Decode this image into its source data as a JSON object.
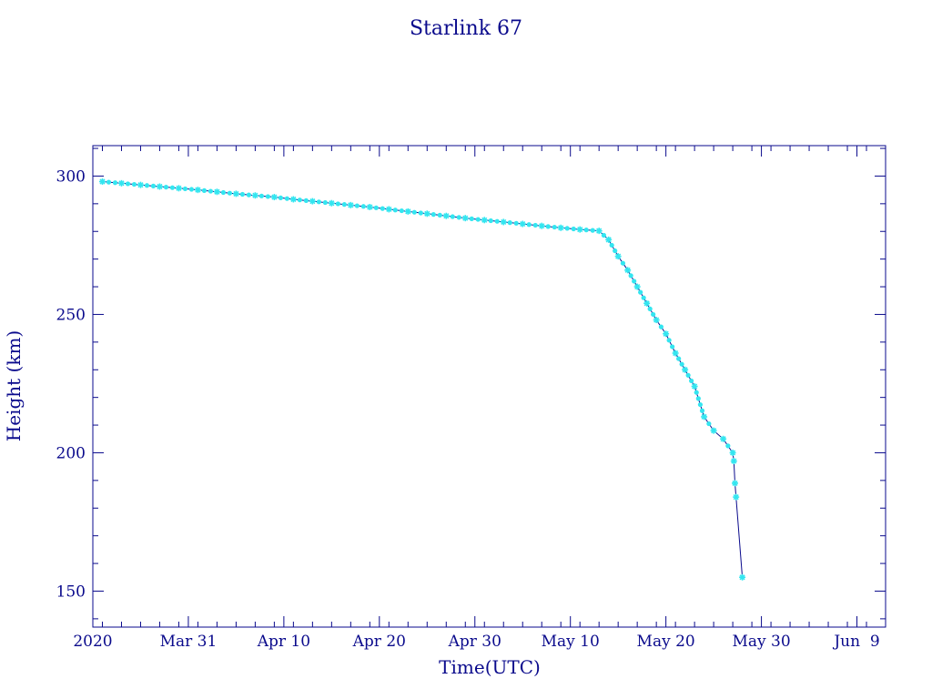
{
  "chart_data": {
    "type": "line",
    "title": "Starlink 67",
    "xlabel": "Time(UTC)",
    "ylabel": "Height (km)",
    "x_scale": "time",
    "xlim": [
      "2020-03-21",
      "2020-06-12"
    ],
    "ylim": [
      137,
      311
    ],
    "grid": false,
    "legend": "none",
    "x_ticks": [
      {
        "date": "2020-03-21",
        "label": "2020"
      },
      {
        "date": "2020-03-31",
        "label": "Mar 31"
      },
      {
        "date": "2020-04-10",
        "label": "Apr 10"
      },
      {
        "date": "2020-04-20",
        "label": "Apr 20"
      },
      {
        "date": "2020-04-30",
        "label": "Apr 30"
      },
      {
        "date": "2020-05-10",
        "label": "May 10"
      },
      {
        "date": "2020-05-20",
        "label": "May 20"
      },
      {
        "date": "2020-05-30",
        "label": "May 30"
      },
      {
        "date": "2020-06-09",
        "label": "Jun  9"
      }
    ],
    "y_ticks": [
      150,
      200,
      250,
      300
    ],
    "colors": {
      "axis": "#0a0a8c",
      "line": "#0a0a8c",
      "marker": "#33e6f0"
    },
    "series": [
      {
        "marker": "star",
        "x": [
          "2020-03-22",
          "2020-03-24",
          "2020-03-26",
          "2020-03-28",
          "2020-03-30",
          "2020-04-01",
          "2020-04-03",
          "2020-04-05",
          "2020-04-07",
          "2020-04-09",
          "2020-04-11",
          "2020-04-13",
          "2020-04-15",
          "2020-04-17",
          "2020-04-19",
          "2020-04-21",
          "2020-04-23",
          "2020-04-25",
          "2020-04-27",
          "2020-04-29",
          "2020-05-01",
          "2020-05-03",
          "2020-05-05",
          "2020-05-07",
          "2020-05-09",
          "2020-05-11",
          "2020-05-13",
          "2020-05-14",
          "2020-05-15",
          "2020-05-16",
          "2020-05-17",
          "2020-05-18",
          "2020-05-19",
          "2020-05-20",
          "2020-05-21",
          "2020-05-22",
          "2020-05-23",
          "2020-05-24",
          "2020-05-25",
          "2020-05-26",
          "2020-05-27",
          "2020-05-27",
          "2020-05-27",
          "2020-05-27",
          "2020-05-28"
        ],
        "y": [
          298,
          297.4,
          296.8,
          296.2,
          295.6,
          295,
          294.3,
          293.6,
          293,
          292.4,
          291.6,
          290.9,
          290.2,
          289.5,
          288.8,
          288,
          287.2,
          286.4,
          285.6,
          284.8,
          284.1,
          283.4,
          282.7,
          282,
          281.3,
          280.7,
          280.2,
          277,
          271,
          266,
          260,
          254,
          248,
          243,
          236,
          230,
          224,
          213,
          208,
          205,
          200,
          197,
          189,
          184,
          155
        ]
      }
    ]
  }
}
